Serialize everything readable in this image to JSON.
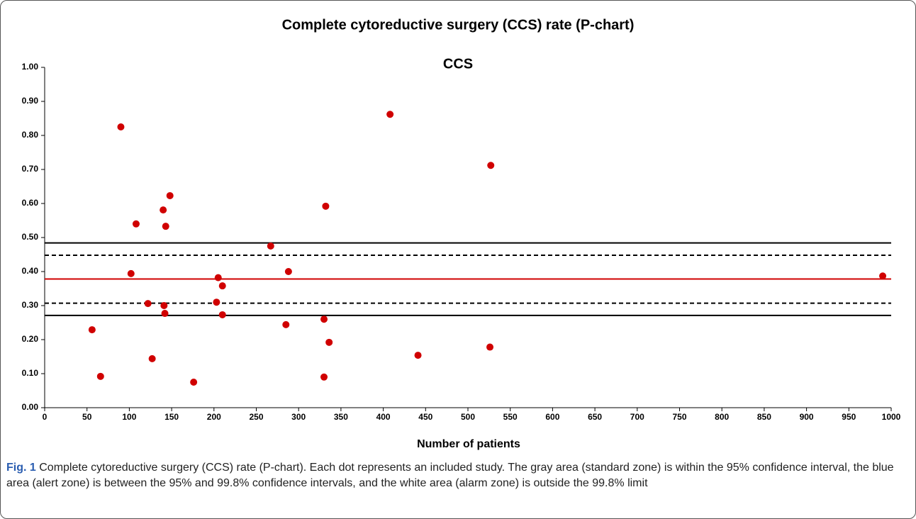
{
  "chart_data": {
    "type": "scatter",
    "title": "Complete cytoreductive surgery (CCS) rate (P-chart)",
    "subtitle": "CCS",
    "x_label": "Number of patients",
    "color": "#d00000",
    "x": [
      56,
      66,
      90,
      102,
      108,
      122,
      127,
      140,
      141,
      142,
      143,
      148,
      176,
      203,
      205,
      210,
      210,
      267,
      285,
      288,
      330,
      330,
      332,
      336,
      408,
      441,
      526,
      527,
      990
    ],
    "values": [
      0.229,
      0.092,
      0.825,
      0.394,
      0.54,
      0.306,
      0.144,
      0.581,
      0.3,
      0.277,
      0.533,
      0.623,
      0.075,
      0.31,
      0.382,
      0.358,
      0.273,
      0.475,
      0.244,
      0.4,
      0.26,
      0.09,
      0.592,
      0.192,
      0.862,
      0.154,
      0.178,
      0.712,
      0.387
    ],
    "reference_lines": [
      {
        "value": 0.484,
        "style": "solid",
        "color": "#000000"
      },
      {
        "value": 0.448,
        "style": "dashed",
        "color": "#000000"
      },
      {
        "value": 0.378,
        "style": "solid",
        "color": "#d00000"
      },
      {
        "value": 0.307,
        "style": "dashed",
        "color": "#000000"
      },
      {
        "value": 0.271,
        "style": "solid",
        "color": "#000000"
      }
    ],
    "xlim": [
      0,
      1000
    ],
    "xticks": [
      0,
      50,
      100,
      150,
      200,
      250,
      300,
      350,
      400,
      450,
      500,
      550,
      600,
      650,
      700,
      750,
      800,
      850,
      900,
      950,
      1000
    ],
    "ylim": [
      0,
      1
    ],
    "yticks": [
      {
        "value": 0,
        "label": "0.00"
      },
      {
        "value": 0.1,
        "label": "0.10"
      },
      {
        "value": 0.2,
        "label": "0.20"
      },
      {
        "value": 0.3,
        "label": "0.30"
      },
      {
        "value": 0.4,
        "label": "0.40"
      },
      {
        "value": 0.5,
        "label": "0.50"
      },
      {
        "value": 0.6,
        "label": "0.60"
      },
      {
        "value": 0.7,
        "label": "0.70"
      },
      {
        "value": 0.8,
        "label": "0.80"
      },
      {
        "value": 0.9,
        "label": "0.90"
      },
      {
        "value": 1,
        "label": "1.00"
      }
    ],
    "grid": false
  },
  "caption": {
    "label": "Fig. 1",
    "text": "Complete cytoreductive surgery (CCS) rate (P-chart). Each dot represents an included study. The gray area (standard zone) is within the 95% confidence interval, the blue area (alert zone) is between the 95% and 99.8% confidence intervals, and the white area (alarm zone) is outside the 99.8% limit"
  }
}
